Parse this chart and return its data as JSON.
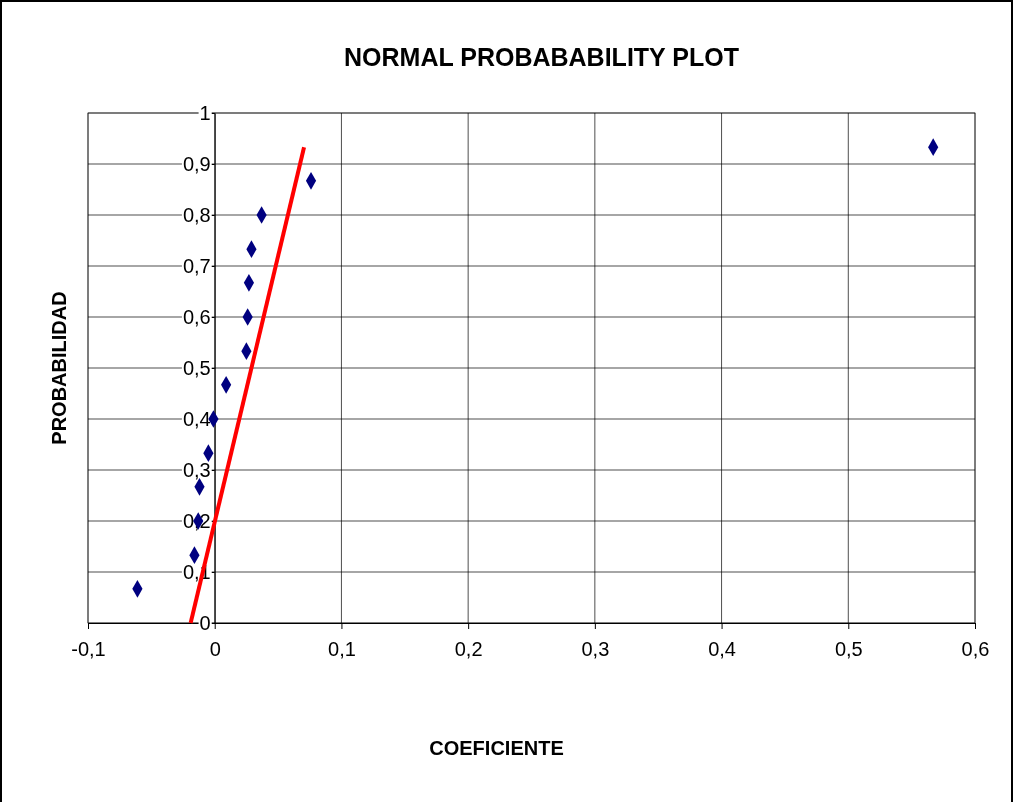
{
  "chart_data": {
    "type": "scatter",
    "title": "NORMAL PROBABABILITY PLOT",
    "xlabel": "COEFICIENTE",
    "ylabel": "PROBABILIDAD",
    "xlim": [
      -0.1,
      0.6
    ],
    "ylim": [
      0,
      1
    ],
    "xticks": [
      {
        "value": -0.1,
        "label": "-0,1"
      },
      0,
      {
        "value": 0.1,
        "label": "0,1"
      },
      {
        "value": 0.2,
        "label": "0,2"
      },
      {
        "value": 0.3,
        "label": "0,3"
      },
      {
        "value": 0.4,
        "label": "0,4"
      },
      {
        "value": 0.5,
        "label": "0,5"
      },
      {
        "value": 0.6,
        "label": "0,6"
      }
    ],
    "yticks": [
      0,
      {
        "value": 0.1,
        "label": "0,1"
      },
      {
        "value": 0.2,
        "label": "0,2"
      },
      {
        "value": 0.3,
        "label": "0,3"
      },
      {
        "value": 0.4,
        "label": "0,4"
      },
      {
        "value": 0.5,
        "label": "0,5"
      },
      {
        "value": 0.6,
        "label": "0,6"
      },
      {
        "value": 0.7,
        "label": "0,7"
      },
      {
        "value": 0.8,
        "label": "0,8"
      },
      {
        "value": 0.9,
        "label": "0,9"
      },
      1
    ],
    "grid": true,
    "marker": "diamond",
    "series": [
      {
        "color": "#000080",
        "x": [
          -0.061,
          -0.016,
          -0.013,
          -0.012,
          -0.005,
          -0.001,
          0.009,
          0.025,
          0.026,
          0.027,
          0.029,
          0.037,
          0.076,
          0.567
        ],
        "values": [
          0.067,
          0.133,
          0.2,
          0.267,
          0.333,
          0.4,
          0.467,
          0.533,
          0.6,
          0.667,
          0.733,
          0.8,
          0.867,
          0.933
        ]
      },
      {
        "type": "line",
        "color": "#ff0000",
        "marker": "none",
        "x": [
          -0.019,
          0.0705
        ],
        "values": [
          0,
          0.933
        ]
      }
    ]
  }
}
